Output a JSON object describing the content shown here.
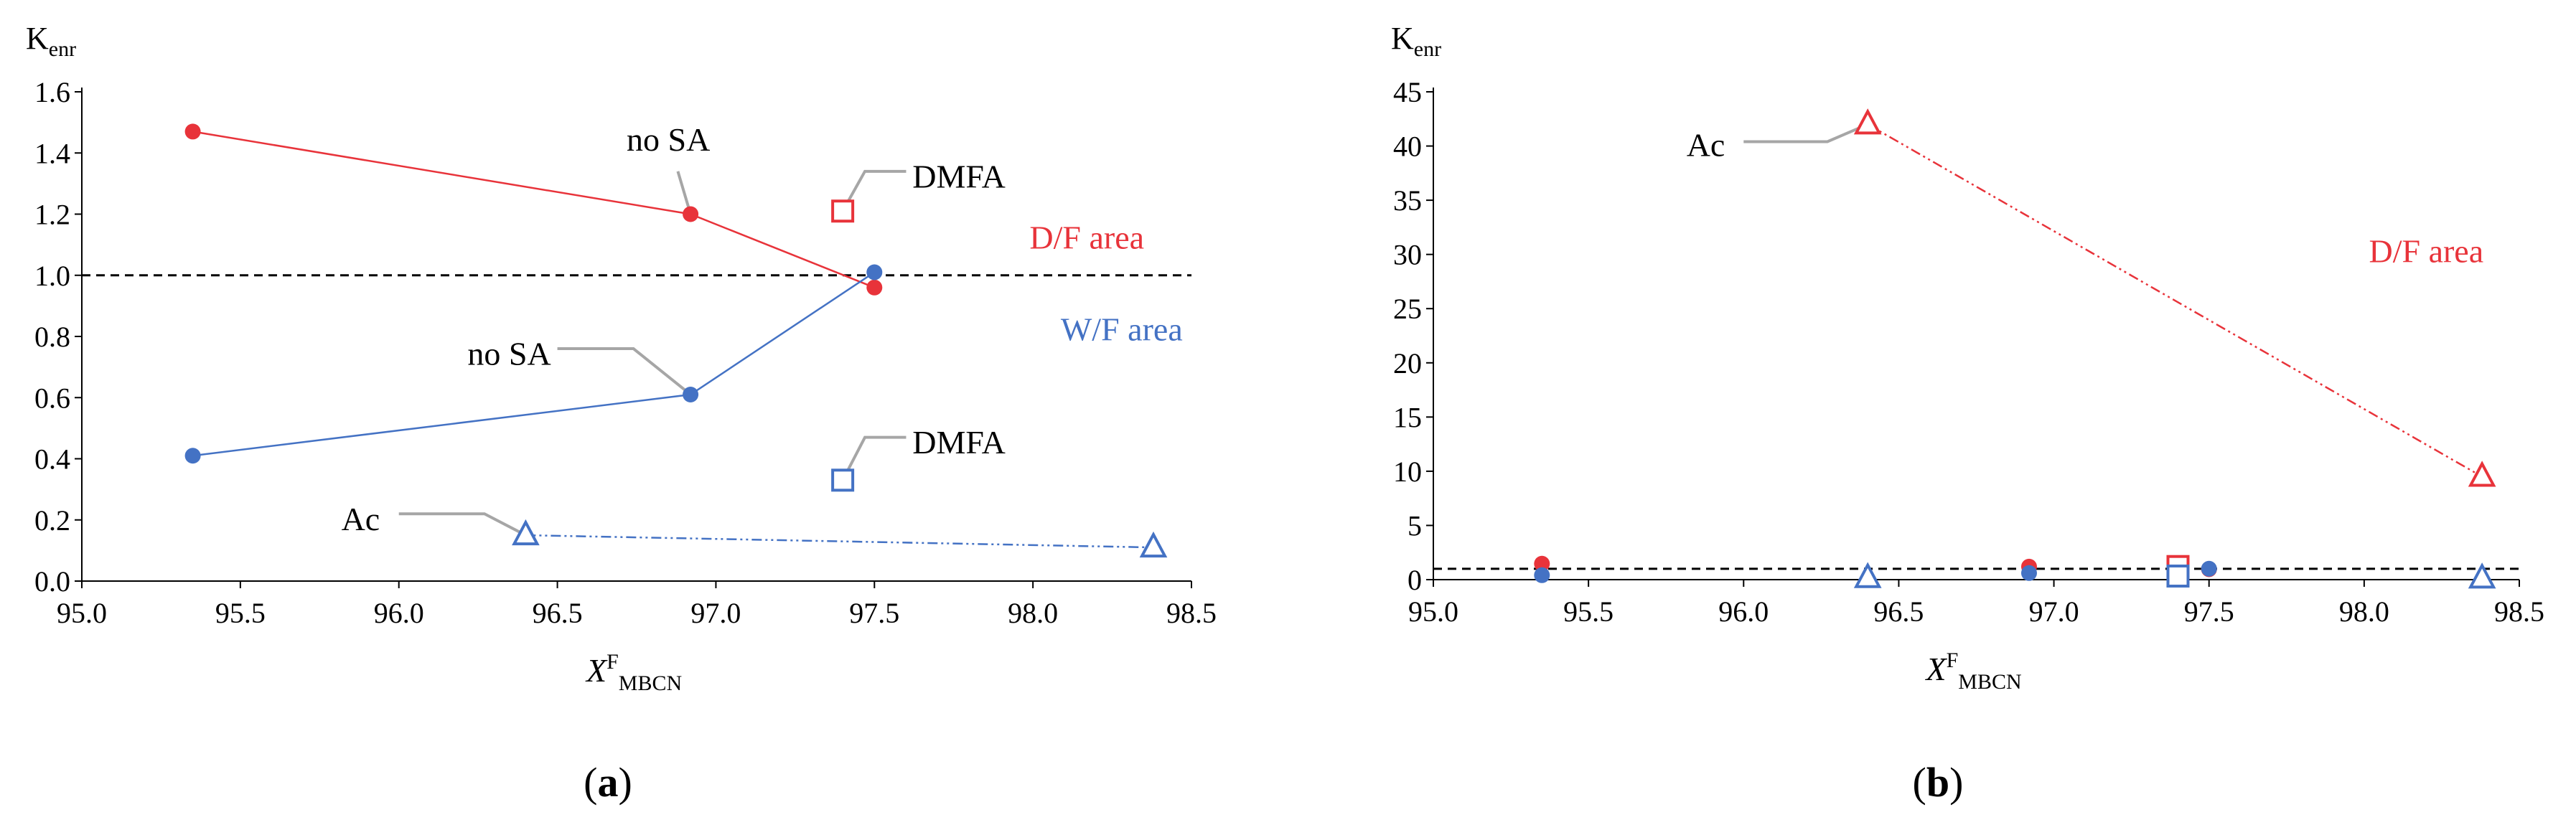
{
  "colors": {
    "red": "#e8333a",
    "blue": "#4472c4",
    "axis": "#000000",
    "callout": "#a6a6a6"
  },
  "chart_data": [
    {
      "panel_label": "(a)",
      "panel_letter": "a",
      "type": "line",
      "ylabel_main": "K",
      "ylabel_sub": "enr",
      "xlabel_main": "X",
      "xlabel_sup": "F",
      "xlabel_sub": "MBCN",
      "xlim": [
        95.0,
        98.5
      ],
      "ylim": [
        0.0,
        1.6
      ],
      "xticks": [
        "95.0",
        "95.5",
        "96.0",
        "96.5",
        "97.0",
        "97.5",
        "98.0",
        "98.5"
      ],
      "yticks": [
        "0.0",
        "0.2",
        "0.4",
        "0.6",
        "0.8",
        "1.0",
        "1.2",
        "1.4",
        "1.6"
      ],
      "reference_line": 1.0,
      "series": [
        {
          "name": "no SA D/F",
          "color": "red",
          "marker": "circle",
          "line": "solid",
          "points": [
            [
              95.35,
              1.47
            ],
            [
              96.92,
              1.2
            ],
            [
              97.5,
              0.96
            ]
          ]
        },
        {
          "name": "no SA W/F",
          "color": "blue",
          "marker": "circle",
          "line": "solid",
          "points": [
            [
              95.35,
              0.41
            ],
            [
              96.92,
              0.61
            ],
            [
              97.5,
              1.01
            ]
          ]
        },
        {
          "name": "DMFA D/F",
          "color": "red",
          "marker": "square",
          "line": "none",
          "points": [
            [
              97.4,
              1.21
            ]
          ]
        },
        {
          "name": "DMFA W/F",
          "color": "blue",
          "marker": "square",
          "line": "none",
          "points": [
            [
              97.4,
              0.33
            ]
          ]
        },
        {
          "name": "Ac W/F",
          "color": "blue",
          "marker": "triangle",
          "line": "dashdot",
          "points": [
            [
              96.4,
              0.15
            ],
            [
              98.38,
              0.11
            ]
          ]
        }
      ],
      "annotations": [
        {
          "text": "no SA",
          "color": "black",
          "target": [
            96.92,
            1.2
          ],
          "tx": 96.85,
          "ty": 1.44,
          "anchor": "middle",
          "leader": [
            [
              96.92,
              1.2
            ],
            [
              96.88,
              1.34
            ]
          ]
        },
        {
          "text": "no SA",
          "color": "black",
          "target": [
            96.92,
            0.61
          ],
          "tx": 96.48,
          "ty": 0.74,
          "anchor": "end",
          "leader": [
            [
              96.92,
              0.61
            ],
            [
              96.74,
              0.76
            ],
            [
              96.5,
              0.76
            ]
          ]
        },
        {
          "text": "DMFA",
          "color": "black",
          "target": [
            97.4,
            1.21
          ],
          "tx": 97.62,
          "ty": 1.32,
          "anchor": "start",
          "leader": [
            [
              97.4,
              1.21
            ],
            [
              97.47,
              1.34
            ],
            [
              97.6,
              1.34
            ]
          ]
        },
        {
          "text": "DMFA",
          "color": "black",
          "target": [
            97.4,
            0.33
          ],
          "tx": 97.62,
          "ty": 0.45,
          "anchor": "start",
          "leader": [
            [
              97.4,
              0.33
            ],
            [
              97.47,
              0.47
            ],
            [
              97.6,
              0.47
            ]
          ]
        },
        {
          "text": "Ac",
          "color": "black",
          "target": [
            96.4,
            0.15
          ],
          "tx": 95.94,
          "ty": 0.2,
          "anchor": "end",
          "leader": [
            [
              96.4,
              0.15
            ],
            [
              96.27,
              0.22
            ],
            [
              96.0,
              0.22
            ]
          ]
        },
        {
          "text": "D/F area",
          "color": "red",
          "tx": 98.17,
          "ty": 1.12,
          "anchor": "middle"
        },
        {
          "text": "W/F area",
          "color": "blue",
          "tx": 98.28,
          "ty": 0.82,
          "anchor": "middle"
        }
      ]
    },
    {
      "panel_label": "(b)",
      "panel_letter": "b",
      "type": "line",
      "ylabel_main": "K",
      "ylabel_sub": "enr",
      "xlabel_main": "X",
      "xlabel_sup": "F",
      "xlabel_sub": "MBCN",
      "xlim": [
        95.0,
        98.5
      ],
      "ylim": [
        0,
        45
      ],
      "xticks": [
        "95.0",
        "95.5",
        "96.0",
        "96.5",
        "97.0",
        "97.5",
        "98.0",
        "98.5"
      ],
      "yticks": [
        "0",
        "5",
        "10",
        "15",
        "20",
        "25",
        "30",
        "35",
        "40",
        "45"
      ],
      "reference_line": 1.0,
      "series": [
        {
          "name": "no SA D/F",
          "color": "red",
          "marker": "circle",
          "line": "none",
          "points": [
            [
              95.35,
              1.47
            ],
            [
              96.92,
              1.2
            ],
            [
              97.5,
              0.96
            ]
          ]
        },
        {
          "name": "no SA W/F",
          "color": "blue",
          "marker": "circle",
          "line": "none",
          "points": [
            [
              95.35,
              0.41
            ],
            [
              96.92,
              0.61
            ],
            [
              97.5,
              1.01
            ]
          ]
        },
        {
          "name": "DMFA D/F",
          "color": "red",
          "marker": "square",
          "line": "none",
          "points": [
            [
              97.4,
              1.21
            ]
          ]
        },
        {
          "name": "DMFA W/F",
          "color": "blue",
          "marker": "square",
          "line": "none",
          "points": [
            [
              97.4,
              0.33
            ]
          ]
        },
        {
          "name": "Ac D/F",
          "color": "red",
          "marker": "triangle",
          "line": "dashdot",
          "points": [
            [
              96.4,
              42
            ],
            [
              98.38,
              9.5
            ]
          ]
        },
        {
          "name": "Ac W/F",
          "color": "blue",
          "marker": "triangle",
          "line": "none",
          "points": [
            [
              96.4,
              0.15
            ],
            [
              98.38,
              0.11
            ]
          ]
        }
      ],
      "annotations": [
        {
          "text": "Ac",
          "color": "black",
          "target": [
            96.4,
            42
          ],
          "tx": 95.94,
          "ty": 40.0,
          "anchor": "end",
          "leader": [
            [
              96.4,
              42
            ],
            [
              96.27,
              40.4
            ],
            [
              96.0,
              40.4
            ]
          ]
        },
        {
          "text": "D/F area",
          "color": "red",
          "tx": 98.2,
          "ty": 30.2,
          "anchor": "middle"
        }
      ]
    }
  ]
}
